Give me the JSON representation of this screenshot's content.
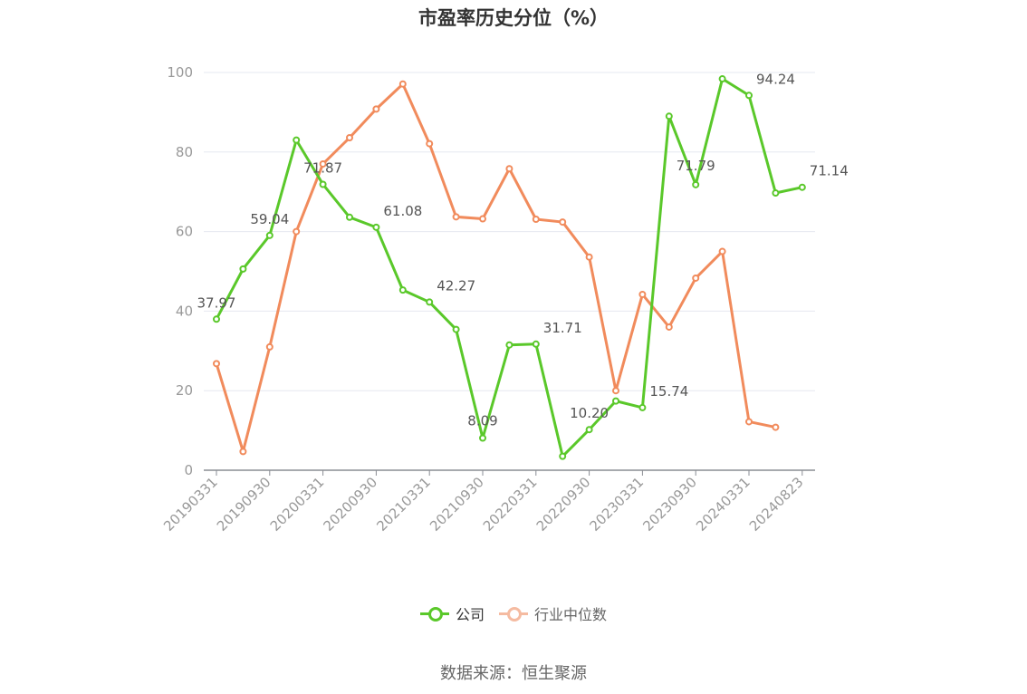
{
  "title": "市盈率历史分位（%）",
  "source": "数据来源：恒生聚源",
  "colors": {
    "company": "#5ac82a",
    "industry": "#f18b5c",
    "industry_legend": "#f5bba1",
    "grid": "#e6e8f0",
    "axis": "#8a8d94",
    "tick_text": "#999999",
    "label_text": "#555555"
  },
  "chart_data": {
    "type": "line",
    "title": "市盈率历史分位（%）",
    "ylim": [
      0,
      100
    ],
    "yticks": [
      0,
      20,
      40,
      60,
      80,
      100
    ],
    "grid": true,
    "legend_position": "bottom-center",
    "x_tick_labels": [
      "20190331",
      "20190930",
      "20200331",
      "20200930",
      "20210331",
      "20210930",
      "20220331",
      "20220930",
      "20230331",
      "20230930",
      "20240331",
      "20240823"
    ],
    "series": [
      {
        "name": "公司",
        "values": [
          37.97,
          50.6,
          59.04,
          83.0,
          71.87,
          63.6,
          61.08,
          45.3,
          42.27,
          35.4,
          8.09,
          31.5,
          31.71,
          3.5,
          10.2,
          17.4,
          15.74,
          89.0,
          71.79,
          98.4,
          94.24,
          69.7,
          71.14
        ],
        "data_labels": [
          {
            "index": 0,
            "text": "37.97"
          },
          {
            "index": 2,
            "text": "59.04"
          },
          {
            "index": 4,
            "text": "71.87"
          },
          {
            "index": 6,
            "text": "61.08"
          },
          {
            "index": 8,
            "text": "42.27"
          },
          {
            "index": 10,
            "text": "8.09"
          },
          {
            "index": 12,
            "text": "31.71"
          },
          {
            "index": 14,
            "text": "10.20"
          },
          {
            "index": 16,
            "text": "15.74"
          },
          {
            "index": 18,
            "text": "71.79"
          },
          {
            "index": 20,
            "text": "94.24"
          },
          {
            "index": 22,
            "text": "71.14"
          }
        ]
      },
      {
        "name": "行业中位数",
        "values": [
          26.8,
          4.7,
          31.0,
          60.0,
          77.0,
          83.6,
          90.8,
          97.1,
          82.1,
          63.7,
          63.2,
          75.8,
          63.1,
          62.4,
          53.6,
          20.0,
          44.2,
          36.0,
          48.3,
          55.0,
          12.2,
          10.8
        ]
      }
    ]
  }
}
